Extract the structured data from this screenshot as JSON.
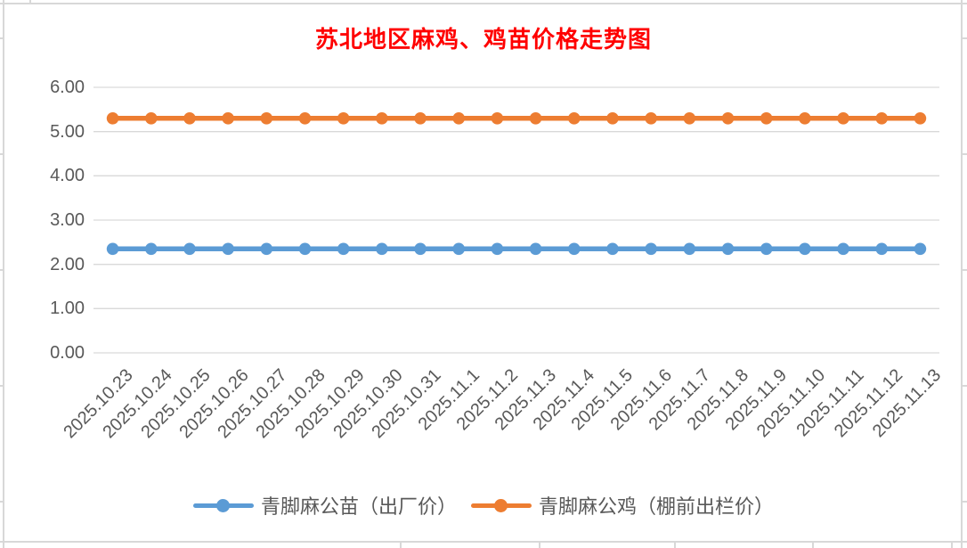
{
  "chart_data": {
    "type": "line",
    "title": "苏北地区麻鸡、鸡苗价格走势图",
    "title_color": "#FF0000",
    "xlabel": "",
    "ylabel": "",
    "ylim": [
      0,
      6
    ],
    "ytick_step": 1,
    "ytick_format": "2dp",
    "grid": true,
    "legend_position": "bottom",
    "gridline_color": "#D9D9D9",
    "axis_text_color": "#595959",
    "categories": [
      "2025.10.23",
      "2025.10.24",
      "2025.10.25",
      "2025.10.26",
      "2025.10.27",
      "2025.10.28",
      "2025.10.29",
      "2025.10.30",
      "2025.10.31",
      "2025.11.1",
      "2025.11.2",
      "2025.11.3",
      "2025.11.4",
      "2025.11.5",
      "2025.11.6",
      "2025.11.7",
      "2025.11.8",
      "2025.11.9",
      "2025.11.10",
      "2025.11.11",
      "2025.11.12",
      "2025.11.13"
    ],
    "series": [
      {
        "name": "青脚麻公苗（出厂价）",
        "color": "#5B9BD5",
        "values": [
          2.35,
          2.35,
          2.35,
          2.35,
          2.35,
          2.35,
          2.35,
          2.35,
          2.35,
          2.35,
          2.35,
          2.35,
          2.35,
          2.35,
          2.35,
          2.35,
          2.35,
          2.35,
          2.35,
          2.35,
          2.35,
          2.35
        ]
      },
      {
        "name": "青脚麻公鸡（棚前出栏价）",
        "color": "#ED7D31",
        "values": [
          5.3,
          5.3,
          5.3,
          5.3,
          5.3,
          5.3,
          5.3,
          5.3,
          5.3,
          5.3,
          5.3,
          5.3,
          5.3,
          5.3,
          5.3,
          5.3,
          5.3,
          5.3,
          5.3,
          5.3,
          5.3,
          5.3
        ]
      }
    ]
  }
}
